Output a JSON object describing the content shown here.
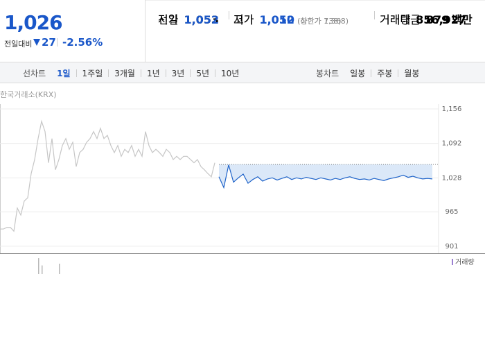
{
  "header": {
    "price": "1,026",
    "change_label": "전일대비",
    "change": "27",
    "change_rate": "-2.56%"
  },
  "stats": {
    "rows": [
      [
        {
          "label": "전일",
          "value": "1,053"
        },
        {
          "label": "고가",
          "value": "1,052",
          "note": "(상한가 1,368)"
        },
        {
          "label": "거래량",
          "value": "856,927"
        }
      ],
      [
        {
          "label": "시가",
          "value": "1,052"
        },
        {
          "label": "저가",
          "value": "1,010",
          "note": "(하한가 738)"
        },
        {
          "label": "거래대금",
          "value": "879",
          "unit": "백만"
        }
      ]
    ]
  },
  "tabs": {
    "line_label": "선차트",
    "periods": [
      "1일",
      "1주일",
      "3개월",
      "1년",
      "3년",
      "5년",
      "10년"
    ],
    "active": "1일",
    "candle_label": "봉차트",
    "candles": [
      "일봉",
      "주봉",
      "월봉"
    ]
  },
  "chart_data": {
    "type": "line",
    "source": "한국거래소(KRX)",
    "ylim": [
      888,
      1165
    ],
    "yticks": [
      {
        "value": 1156,
        "label": "1,156"
      },
      {
        "value": 1092,
        "label": "1,092"
      },
      {
        "value": 1028,
        "label": "1,028"
      },
      965,
      901
    ],
    "grid": true,
    "reference": 1053,
    "series": [
      {
        "color": "#c6c6c6",
        "values": [
          933,
          933,
          936,
          936,
          929,
          972,
          959,
          985,
          991,
          1036,
          1062,
          1101,
          1133,
          1114,
          1056,
          1101,
          1043,
          1062,
          1088,
          1101,
          1081,
          1094,
          1049,
          1075,
          1081,
          1094,
          1101,
          1114,
          1101,
          1120,
          1101,
          1107,
          1088,
          1075,
          1088,
          1068,
          1081,
          1075,
          1088,
          1068,
          1081,
          1068,
          1114,
          1088,
          1075,
          1081,
          1075,
          1068,
          1081,
          1075,
          1062,
          1068,
          1062,
          1068,
          1068,
          1062,
          1056,
          1062,
          1049,
          1043,
          1036,
          1030,
          1056
        ]
      },
      {
        "color": "#1e63c9",
        "values": [
          1030,
          1010,
          1052,
          1020,
          1028,
          1035,
          1018,
          1025,
          1030,
          1022,
          1026,
          1028,
          1024,
          1027,
          1030,
          1025,
          1028,
          1026,
          1029,
          1027,
          1025,
          1028,
          1026,
          1024,
          1027,
          1025,
          1028,
          1030,
          1027,
          1025,
          1026,
          1024,
          1027,
          1025,
          1023,
          1026,
          1028,
          1030,
          1033,
          1029,
          1031,
          1028,
          1026,
          1027,
          1026
        ]
      }
    ],
    "volume": {
      "name": "거래량",
      "color": "#b9b9b9",
      "ylim": [
        0,
        60000
      ],
      "values": [
        null,
        null,
        null,
        null,
        null,
        null,
        null,
        null,
        null,
        null,
        null,
        55000,
        30000,
        null,
        null,
        null,
        null,
        36000,
        null,
        null,
        null,
        null,
        null,
        null,
        null,
        null,
        null,
        null,
        null,
        null,
        null,
        null,
        null,
        null,
        null,
        null,
        null,
        null,
        null,
        null,
        null,
        null,
        null,
        null,
        null,
        null,
        null,
        null,
        null,
        null,
        null,
        null,
        null,
        null,
        null,
        null,
        null,
        null,
        null,
        null,
        null,
        null,
        null
      ]
    }
  }
}
